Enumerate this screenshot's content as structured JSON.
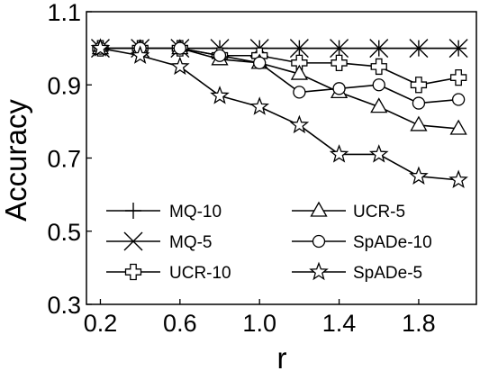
{
  "chart_data": {
    "type": "line",
    "title": "",
    "xlabel": "r",
    "ylabel": "Accuracy",
    "xlim": [
      0.13,
      2.09
    ],
    "ylim": [
      0.3,
      1.1
    ],
    "xticks": [
      "0.2",
      "0.6",
      "1.0",
      "1.4",
      "1.8"
    ],
    "yticks": [
      "0.3",
      "0.5",
      "0.7",
      "0.9",
      "1.1"
    ],
    "grid": false,
    "legend_position": "bottom-left",
    "x": [
      0.2,
      0.4,
      0.6,
      0.8,
      1.0,
      1.2,
      1.4,
      1.6,
      1.8,
      2.0
    ],
    "series": [
      {
        "name": "MQ-10",
        "marker": "plus",
        "values": [
          1.0,
          1.0,
          1.0,
          1.0,
          1.0,
          1.0,
          1.0,
          1.0,
          1.0,
          1.0
        ]
      },
      {
        "name": "MQ-5",
        "marker": "x",
        "values": [
          1.0,
          1.0,
          1.0,
          1.0,
          1.0,
          1.0,
          1.0,
          1.0,
          1.0,
          1.0
        ]
      },
      {
        "name": "UCR-10",
        "marker": "thick-plus",
        "values": [
          1.0,
          1.0,
          1.0,
          0.98,
          0.98,
          0.96,
          0.96,
          0.95,
          0.9,
          0.92
        ]
      },
      {
        "name": "UCR-5",
        "marker": "triangle",
        "values": [
          1.0,
          1.0,
          1.0,
          0.97,
          0.96,
          0.93,
          0.88,
          0.84,
          0.79,
          0.78
        ]
      },
      {
        "name": "SpADe-10",
        "marker": "circle",
        "values": [
          1.0,
          1.0,
          1.0,
          0.98,
          0.96,
          0.88,
          0.89,
          0.9,
          0.85,
          0.86
        ]
      },
      {
        "name": "SpADe-5",
        "marker": "star",
        "values": [
          1.0,
          0.98,
          0.95,
          0.87,
          0.84,
          0.79,
          0.71,
          0.71,
          0.65,
          0.64
        ]
      }
    ]
  }
}
